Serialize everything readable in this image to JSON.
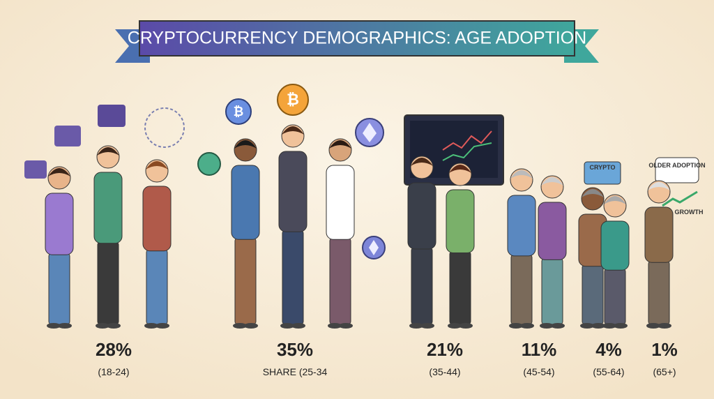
{
  "header": {
    "title": "CRYPTOCURRENCY DEMOGRAPHICS: AGE ADOPTION"
  },
  "groups": [
    {
      "percent": "28%",
      "label": "(18-24)"
    },
    {
      "percent": "35%",
      "label": "SHARE (25-34"
    },
    {
      "percent": "21%",
      "label": "(35-44)"
    },
    {
      "percent": "11%",
      "label": "(45-54)"
    },
    {
      "percent": "4%",
      "label": "(55-64)"
    },
    {
      "percent": "1%",
      "label": "(65+)"
    }
  ],
  "callouts": {
    "card": "CRYPTO",
    "bubble": "OLDER ADOPTION",
    "arrow": "GROWTH"
  }
}
